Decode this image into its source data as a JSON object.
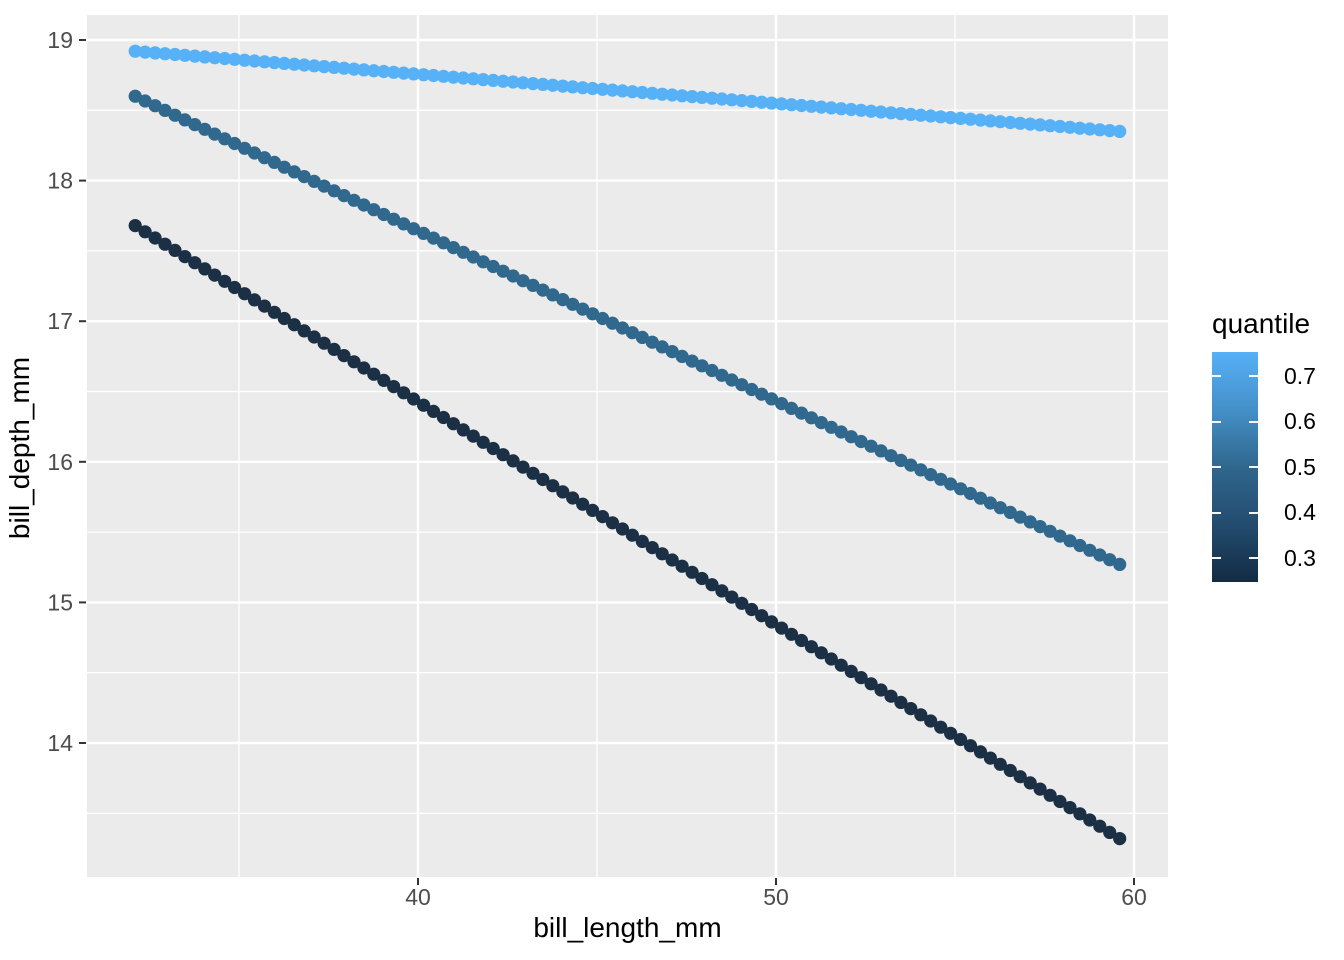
{
  "chart_data": {
    "type": "scatter",
    "title": "",
    "xlabel": "bill_length_mm",
    "ylabel": "bill_depth_mm",
    "x_ticks": [
      40,
      50,
      60
    ],
    "x_minor_ticks": [
      35,
      45,
      55
    ],
    "y_ticks": [
      14,
      15,
      16,
      17,
      18,
      19
    ],
    "y_minor_ticks": [
      13.5,
      14.5,
      15.5,
      16.5,
      17.5,
      18.5
    ],
    "xlim": [
      30.73,
      60.98
    ],
    "ylim": [
      13.04,
      19.2
    ],
    "grid": true,
    "panel_background": "#EBEBEB",
    "grid_color": "#FFFFFF",
    "tick_label_color": "#4D4D4D",
    "tick_mark_color": "#333333",
    "x_data_range": [
      32.1,
      59.6
    ],
    "points_per_series": 100,
    "point_radius_px": 6.6,
    "series": [
      {
        "name": "quantile 0.25",
        "quantile": 0.25,
        "color": "#1B3044",
        "y_start": 17.68,
        "y_end": 13.32,
        "slope": -0.1585,
        "intercept": 22.77
      },
      {
        "name": "quantile 0.5",
        "quantile": 0.5,
        "color": "#31688E",
        "y_start": 18.6,
        "y_end": 15.27,
        "slope": -0.1211,
        "intercept": 22.49
      },
      {
        "name": "quantile 0.75",
        "quantile": 0.75,
        "color": "#56B1F7",
        "y_start": 18.92,
        "y_end": 18.35,
        "slope": -0.0207,
        "intercept": 19.58
      }
    ],
    "legend": {
      "title": "quantile",
      "position": "right",
      "bar_value_top": 0.753,
      "bar_value_bottom": 0.248,
      "tick_values": [
        0.7,
        0.6,
        0.5,
        0.4,
        0.3
      ],
      "tick_labels": [
        "0.7",
        "0.6",
        "0.5",
        "0.4",
        "0.3"
      ],
      "gradient_high": "#56B1F7",
      "gradient_low": "#132B43",
      "gradient_stops": [
        {
          "pos": 0.0,
          "color": "#56B1F7"
        },
        {
          "pos": 0.25,
          "color": "#4490C9"
        },
        {
          "pos": 0.5,
          "color": "#30678D"
        },
        {
          "pos": 0.75,
          "color": "#234C6F"
        },
        {
          "pos": 1.0,
          "color": "#132B43"
        }
      ]
    }
  }
}
